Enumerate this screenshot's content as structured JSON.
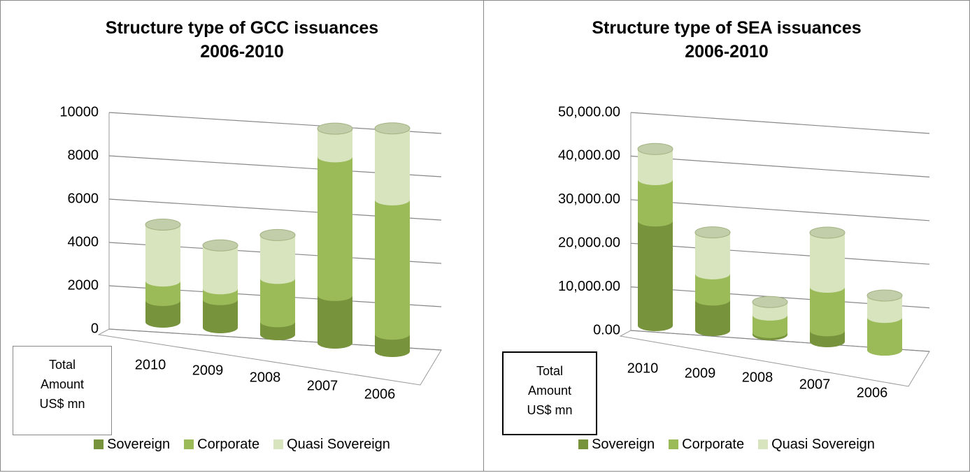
{
  "chart_data": [
    {
      "type": "bar",
      "stacked": true,
      "title": "Structure type of GCC issuances 2006-2010",
      "categories": [
        "2010",
        "2009",
        "2008",
        "2007",
        "2006"
      ],
      "series": [
        {
          "name": "Sovereign",
          "color": "#77933c",
          "values": [
            1000,
            1300,
            600,
            2200,
            800
          ]
        },
        {
          "name": "Corporate",
          "color": "#9bbb59",
          "values": [
            900,
            500,
            2000,
            6400,
            6200
          ]
        },
        {
          "name": "Quasi Sovereign",
          "color": "#d7e4bd",
          "values": [
            2600,
            2000,
            2000,
            1300,
            3300
          ]
        }
      ],
      "ylim": [
        0,
        10000
      ],
      "yticks": [
        0,
        2000,
        4000,
        6000,
        8000,
        10000
      ],
      "grid": true,
      "annotation": "Total Amount US$ mn",
      "legend": "bottom"
    },
    {
      "type": "bar",
      "stacked": true,
      "title": "Structure type of SEA issuances 2006-2010",
      "categories": [
        "2010",
        "2009",
        "2008",
        "2007",
        "2006"
      ],
      "series": [
        {
          "name": "Sovereign",
          "color": "#77933c",
          "values": [
            24000,
            7000,
            500,
            2500,
            0
          ]
        },
        {
          "name": "Corporate",
          "color": "#9bbb59",
          "values": [
            9500,
            6000,
            4000,
            10000,
            7500
          ]
        },
        {
          "name": "Quasi Sovereign",
          "color": "#d7e4bd",
          "values": [
            7000,
            9500,
            3000,
            12500,
            5000
          ]
        }
      ],
      "ylim": [
        0,
        50000
      ],
      "yticks": [
        {
          "value": 0,
          "label": "0.00"
        },
        {
          "value": 10000,
          "label": "10,000.00"
        },
        {
          "value": 20000,
          "label": "20,000.00"
        },
        {
          "value": 30000,
          "label": "30,000.00"
        },
        {
          "value": 40000,
          "label": "40,000.00"
        },
        {
          "value": 50000,
          "label": "50,000.00"
        }
      ],
      "grid": true,
      "annotation": "Total Amount US$ mn",
      "legend": "bottom"
    }
  ]
}
